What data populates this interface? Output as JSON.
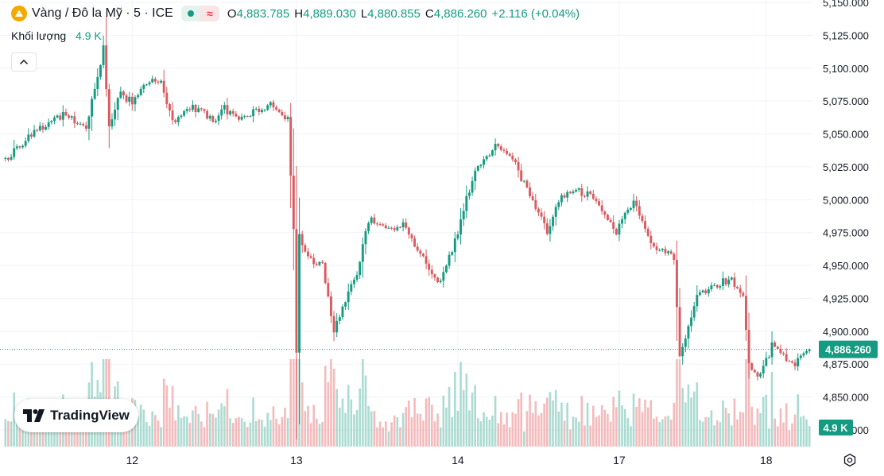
{
  "header": {
    "symbol_title": "Vàng / Đô la Mỹ · 5 · ICE",
    "open_label": "O",
    "open_value": "4,883.785",
    "high_label": "H",
    "high_value": "4,889.030",
    "low_label": "L",
    "low_value": "4,880.855",
    "close_label": "C",
    "close_value": "4,886.260",
    "change": "+2.116 (+0.04%)"
  },
  "volume": {
    "label": "Khối lượng",
    "value": "4.9 K"
  },
  "logo": {
    "text": "TradingView"
  },
  "colors": {
    "up": "#159b81",
    "down": "#d95a5f",
    "up_volume": "#8fcfc2",
    "down_volume": "#f2a3a6",
    "symbol_icon": "#f2a900"
  },
  "icons": {
    "symbol": "gold-coin-icon",
    "collapse": "chevron-up-icon",
    "settings": "gear-icon"
  },
  "chart_data": {
    "type": "candlestick",
    "price_axis": {
      "ticks": [
        5150,
        5125,
        5100,
        5075,
        5050,
        5025,
        5000,
        4975,
        4950,
        4925,
        4900,
        4875,
        4850,
        4825
      ],
      "tick_labels": [
        "5,150.000",
        "5,125.000",
        "5,100.000",
        "5,075.000",
        "5,050.000",
        "5,025.000",
        "5,000.000",
        "4,975.000",
        "4,950.000",
        "4,925.000",
        "4,900.000",
        "4,875.000",
        "4,850.000",
        "4,825.000"
      ],
      "range": [
        4817,
        5150
      ]
    },
    "time_axis": {
      "labels": [
        "12",
        "13",
        "14",
        "17",
        "18"
      ],
      "label_positions_bar_index": [
        44,
        101,
        157,
        213,
        264
      ],
      "bar_count": 280
    },
    "current_price": 4886.26,
    "current_price_label": "4,886.260",
    "current_volume_label": "4.9 K",
    "price_path": [
      [
        0,
        5031
      ],
      [
        10,
        5052
      ],
      [
        20,
        5064
      ],
      [
        28,
        5056
      ],
      [
        33,
        5102
      ],
      [
        34,
        5115
      ],
      [
        36,
        5058
      ],
      [
        40,
        5080
      ],
      [
        44,
        5074
      ],
      [
        49,
        5090
      ],
      [
        54,
        5088
      ],
      [
        58,
        5060
      ],
      [
        65,
        5070
      ],
      [
        72,
        5061
      ],
      [
        76,
        5069
      ],
      [
        82,
        5061
      ],
      [
        87,
        5067
      ],
      [
        93,
        5072
      ],
      [
        98,
        5060
      ],
      [
        100,
        4975
      ],
      [
        101,
        4884
      ],
      [
        102,
        4975
      ],
      [
        105,
        4955
      ],
      [
        110,
        4950
      ],
      [
        114,
        4900
      ],
      [
        118,
        4925
      ],
      [
        122,
        4945
      ],
      [
        126,
        4985
      ],
      [
        132,
        4978
      ],
      [
        138,
        4980
      ],
      [
        144,
        4960
      ],
      [
        150,
        4936
      ],
      [
        156,
        4968
      ],
      [
        160,
        5002
      ],
      [
        164,
        5025
      ],
      [
        170,
        5040
      ],
      [
        176,
        5030
      ],
      [
        184,
        4995
      ],
      [
        188,
        4975
      ],
      [
        192,
        5000
      ],
      [
        197,
        5008
      ],
      [
        204,
        5002
      ],
      [
        212,
        4975
      ],
      [
        218,
        5000
      ],
      [
        224,
        4968
      ],
      [
        228,
        4960
      ],
      [
        232,
        4957
      ],
      [
        234,
        4880
      ],
      [
        240,
        4927
      ],
      [
        246,
        4935
      ],
      [
        252,
        4940
      ],
      [
        256,
        4926
      ],
      [
        258,
        4875
      ],
      [
        262,
        4865
      ],
      [
        266,
        4889
      ],
      [
        270,
        4880
      ],
      [
        274,
        4876
      ],
      [
        279,
        4886.26
      ]
    ]
  }
}
